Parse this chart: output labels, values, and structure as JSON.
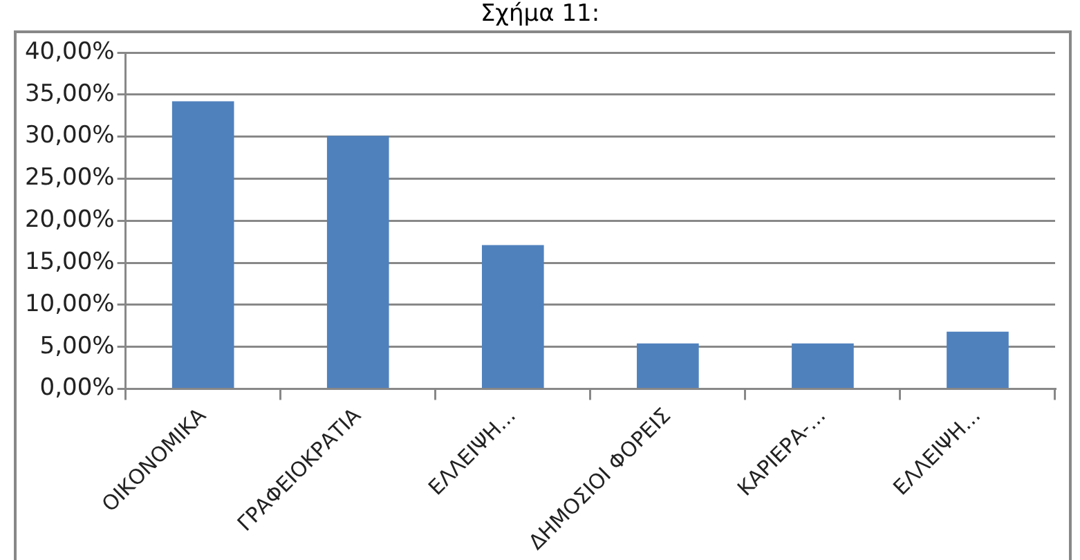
{
  "chart_data": {
    "type": "bar",
    "title": "Σχήμα 11:",
    "categories": [
      "ΟΙΚΟΝΟΜΙΚΑ",
      "ΓΡΑΦΕΙΟΚΡΑΤΙΑ",
      "ΕΛΛΕΙΨΗ...",
      "ΔΗΜΟΣΙΟΙ ΦΟΡΕΙΣ",
      "ΚΑΡΙΕΡΑ-...",
      "ΕΛΛΕΙΨΗ..."
    ],
    "values": [
      34.2,
      30.1,
      17.1,
      5.4,
      5.4,
      6.8
    ],
    "color": "#4f81bd",
    "ylim": [
      0,
      40
    ],
    "yticks": [
      {
        "value": 0,
        "label": "0,00%"
      },
      {
        "value": 5,
        "label": "5,00%"
      },
      {
        "value": 10,
        "label": "10,00%"
      },
      {
        "value": 15,
        "label": "15,00%"
      },
      {
        "value": 20,
        "label": "20,00%"
      },
      {
        "value": 25,
        "label": "25,00%"
      },
      {
        "value": 30,
        "label": "30,00%"
      },
      {
        "value": 35,
        "label": "35,00%"
      },
      {
        "value": 40,
        "label": "40,00%"
      }
    ],
    "grid": "y"
  }
}
